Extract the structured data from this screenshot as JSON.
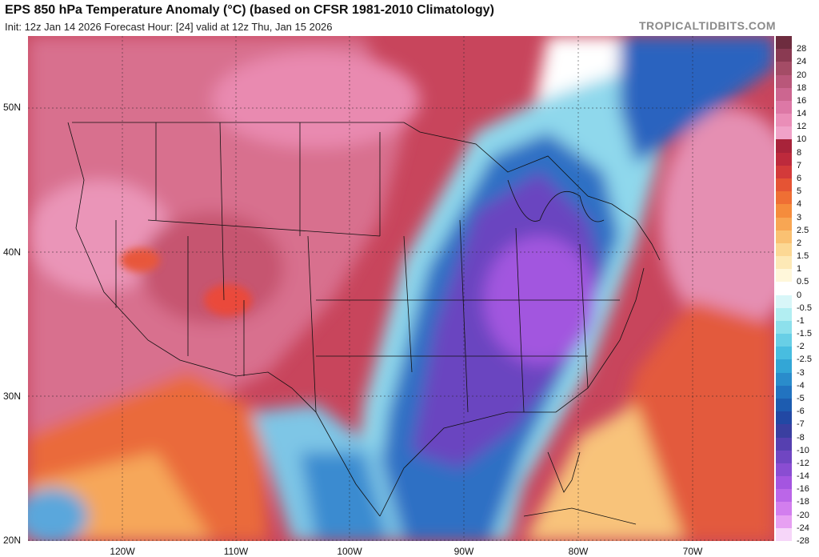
{
  "header": {
    "title": "EPS 850 hPa Temperature Anomaly (°C) (based on CFSR 1981-2010 Climatology)",
    "subtitle": "Init: 12z Jan 14 2026   Forecast Hour: [24]   valid at 12z Thu, Jan 15 2026",
    "watermark": "TROPICALTIDBITS.COM"
  },
  "axes": {
    "lat_labels": [
      "50N",
      "40N",
      "30N",
      "20N"
    ],
    "lon_labels": [
      "120W",
      "110W",
      "100W",
      "90W",
      "80W",
      "70W"
    ]
  },
  "colorbar": {
    "labels": [
      "28",
      "24",
      "20",
      "18",
      "16",
      "14",
      "12",
      "10",
      "8",
      "7",
      "6",
      "5",
      "4",
      "3",
      "2.5",
      "2",
      "1.5",
      "1",
      "0.5",
      "0",
      "-0.5",
      "-1",
      "-1.5",
      "-2",
      "-2.5",
      "-3",
      "-4",
      "-5",
      "-6",
      "-7",
      "-8",
      "-10",
      "-12",
      "-14",
      "-16",
      "-18",
      "-20",
      "-24",
      "-28"
    ],
    "colors": [
      "#6e2c3f",
      "#8a3a52",
      "#a44c66",
      "#b9577a",
      "#cc6690",
      "#dd78a6",
      "#ea8eb8",
      "#f0a2c8",
      "#a8233a",
      "#bd2a3c",
      "#d33a3a",
      "#e55434",
      "#ef6f34",
      "#f58c3c",
      "#f8a653",
      "#fac172",
      "#fcd894",
      "#fde9b6",
      "#fff7da",
      "#ffffff",
      "#d8f6f8",
      "#b2eef2",
      "#8de0ec",
      "#68cfe6",
      "#48bde0",
      "#33a6d6",
      "#2a8ccb",
      "#2273c0",
      "#1d5cb0",
      "#2248a4",
      "#3a3fa0",
      "#5640b0",
      "#7046c2",
      "#8a4dd2",
      "#a455e0",
      "#bb66e8",
      "#d27eee",
      "#e7a0f2",
      "#f6d6f9"
    ]
  }
}
